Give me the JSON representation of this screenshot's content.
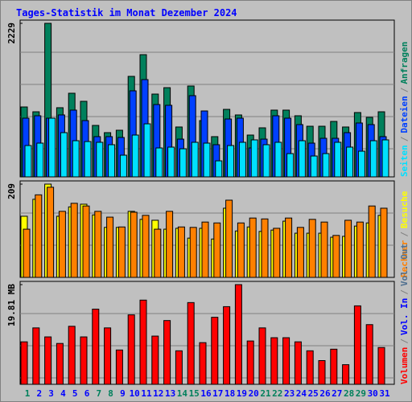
{
  "title": "Tages-Statistik im Monat Dezember 2024",
  "legend_separator": "/",
  "chart_data": [
    {
      "type": "bar",
      "ylim": [
        0,
        2229
      ],
      "yticks": [
        2229
      ],
      "series": [
        {
          "name": "Anfragen",
          "color": "#00805c",
          "values": [
            1015,
            945,
            2229,
            1004,
            1214,
            1097,
            747,
            642,
            677,
            1459,
            1774,
            1202,
            1295,
            724,
            1319,
            817,
            584,
            980,
            899,
            607,
            712,
            969,
            969,
            887,
            735,
            735,
            805,
            724,
            934,
            864,
            945
          ]
        },
        {
          "name": "Dateien",
          "color": "#0040ff",
          "values": [
            852,
            887,
            852,
            899,
            969,
            817,
            584,
            584,
            572,
            1249,
            1412,
            1050,
            1039,
            548,
            1179,
            957,
            467,
            840,
            852,
            420,
            548,
            887,
            852,
            759,
            490,
            560,
            560,
            642,
            782,
            759,
            584
          ]
        },
        {
          "name": "Seiten",
          "color": "#00e0ff",
          "values": [
            455,
            490,
            852,
            642,
            525,
            513,
            502,
            467,
            315,
            607,
            770,
            420,
            432,
            408,
            502,
            490,
            233,
            455,
            502,
            537,
            467,
            502,
            338,
            525,
            303,
            338,
            502,
            432,
            373,
            525,
            537
          ]
        }
      ]
    },
    {
      "type": "bar",
      "ylim": [
        0,
        209
      ],
      "yticks": [
        209
      ],
      "series": [
        {
          "name": "Besuche",
          "color": "#ffff00",
          "values": [
            137,
            175,
            209,
            137,
            158,
            164,
            140,
            112,
            112,
            148,
            130,
            128,
            108,
            110,
            88,
            110,
            86,
            155,
            104,
            113,
            103,
            106,
            126,
            99,
            99,
            99,
            90,
            92,
            115,
            122,
            139
          ]
        },
        {
          "name": "Rechner",
          "color": "#ff8000",
          "values": [
            108,
            185,
            202,
            148,
            166,
            160,
            148,
            135,
            113,
            146,
            139,
            108,
            148,
            113,
            112,
            124,
            122,
            173,
            122,
            133,
            131,
            110,
            133,
            112,
            130,
            124,
            94,
            128,
            124,
            160,
            155
          ]
        }
      ]
    },
    {
      "type": "bar",
      "ylim": [
        0,
        19.81
      ],
      "yticks": [
        {
          "value": 19.81,
          "label": "19.81 MB"
        }
      ],
      "categories": [
        "1",
        "2",
        "3",
        "4",
        "5",
        "6",
        "7",
        "8",
        "9",
        "10",
        "11",
        "12",
        "13",
        "14",
        "15",
        "16",
        "17",
        "18",
        "19",
        "20",
        "21",
        "22",
        "23",
        "24",
        "25",
        "26",
        "27",
        "28",
        "29",
        "30",
        "31"
      ],
      "category_colors": [
        "#00805c",
        "#0000ff",
        "#0000ff",
        "#0000ff",
        "#0000ff",
        "#0000ff",
        "#00805c",
        "#00805c",
        "#0000ff",
        "#0000ff",
        "#0000ff",
        "#0000ff",
        "#0000ff",
        "#00805c",
        "#00805c",
        "#0000ff",
        "#0000ff",
        "#0000ff",
        "#0000ff",
        "#0000ff",
        "#00805c",
        "#00805c",
        "#0000ff",
        "#0000ff",
        "#0000ff",
        "#0000ff",
        "#0000ff",
        "#00805c",
        "#00805c",
        "#0000ff",
        "#0000ff"
      ],
      "series": [
        {
          "name": "Volumen",
          "color": "#ff0000",
          "values": [
            8.44,
            11.21,
            9.42,
            8.12,
            11.53,
            9.42,
            14.94,
            11.21,
            6.82,
            13.8,
            16.73,
            9.58,
            12.67,
            6.66,
            16.24,
            8.28,
            13.32,
            15.43,
            19.81,
            8.61,
            11.21,
            9.26,
            9.26,
            8.44,
            6.66,
            4.71,
            6.98,
            3.9,
            15.59,
            11.86,
            7.31
          ]
        }
      ],
      "extra_legend": [
        {
          "name": "Vol. In",
          "color": "#0000ff"
        },
        {
          "name": "Vol. Out",
          "color": "#507090"
        }
      ]
    }
  ]
}
